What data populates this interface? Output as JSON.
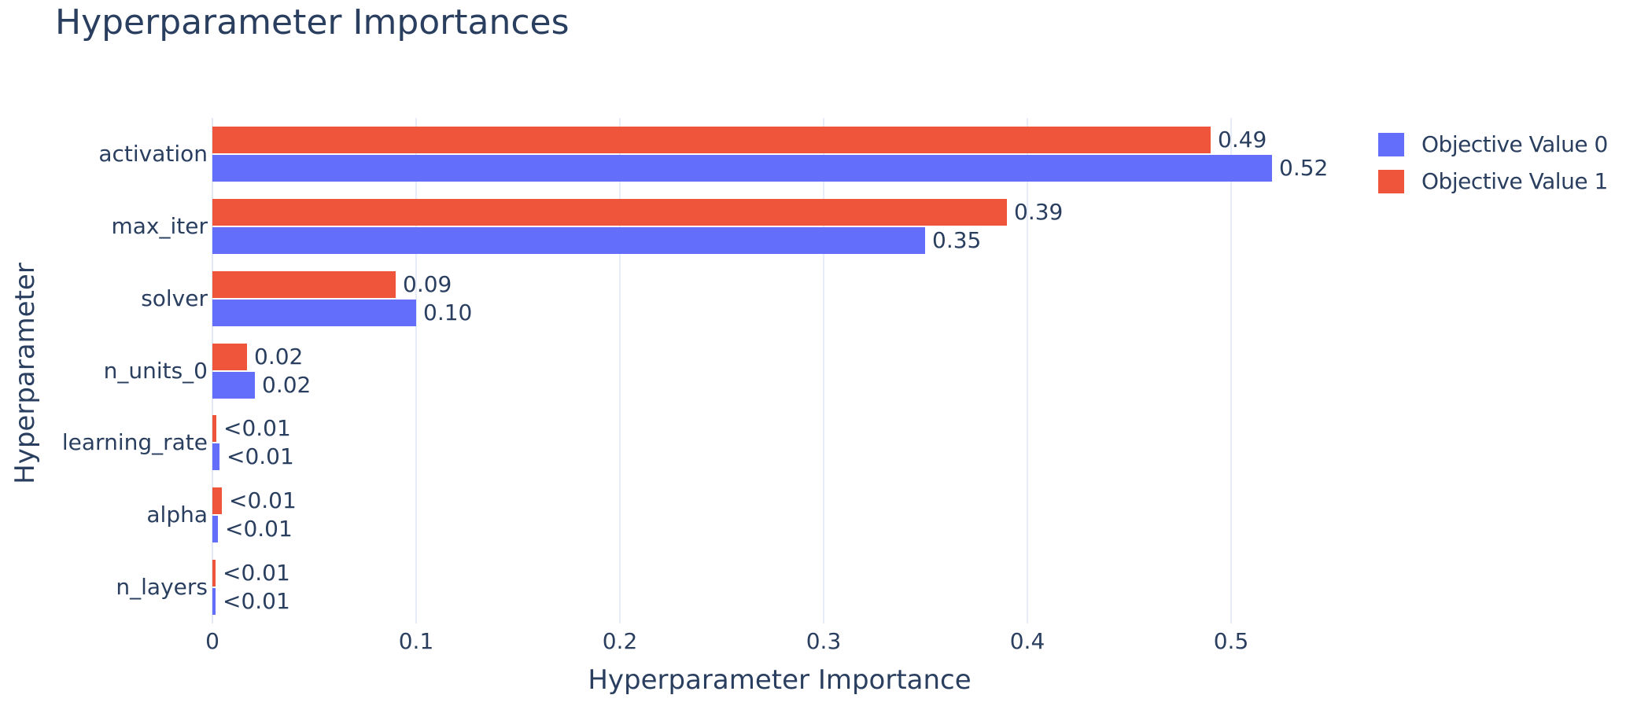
{
  "chart_data": {
    "type": "bar",
    "orientation": "horizontal",
    "title": "Hyperparameter Importances",
    "xlabel": "Hyperparameter Importance",
    "ylabel": "Hyperparameter",
    "categories": [
      "activation",
      "max_iter",
      "solver",
      "n_units_0",
      "learning_rate",
      "alpha",
      "n_layers"
    ],
    "x_ticks": [
      "0",
      "0.1",
      "0.2",
      "0.3",
      "0.4",
      "0.5"
    ],
    "x_tick_values": [
      0,
      0.1,
      0.2,
      0.3,
      0.4,
      0.5
    ],
    "xlim": [
      0,
      0.557
    ],
    "grid": true,
    "legend_position": "right",
    "bar_order_in_group": [
      "Objective Value 1",
      "Objective Value 0"
    ],
    "series": [
      {
        "name": "Objective Value 0",
        "color": "#636efa",
        "values": [
          0.52,
          0.35,
          0.1,
          0.021,
          0.0035,
          0.0027,
          0.0016
        ],
        "labels": [
          "0.52",
          "0.35",
          "0.10",
          "0.02",
          "<0.01",
          "<0.01",
          "<0.01"
        ]
      },
      {
        "name": "Objective Value 1",
        "color": "#ef553b",
        "values": [
          0.49,
          0.39,
          0.09,
          0.017,
          0.002,
          0.0045,
          0.0015
        ],
        "labels": [
          "0.49",
          "0.39",
          "0.09",
          "0.02",
          "<0.01",
          "<0.01",
          "<0.01"
        ]
      }
    ],
    "colors": {
      "text": "#2a3f5f",
      "grid": "#e7edf8",
      "zeroline": "#e0e9f5",
      "background": "#ffffff"
    }
  }
}
